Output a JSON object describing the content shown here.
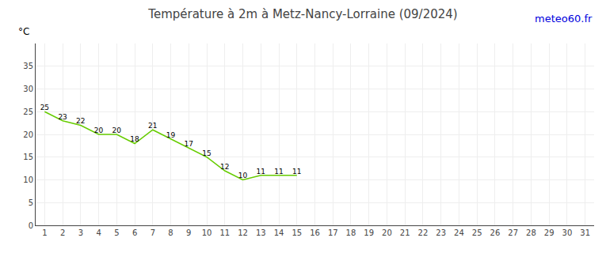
{
  "chart_data": {
    "type": "line",
    "title": "Température à 2m à Metz-Nancy-Lorraine (09/2024)",
    "ylabel": "°C",
    "annotations": [
      "meteo60.fr"
    ],
    "x": [
      1,
      2,
      3,
      4,
      5,
      6,
      7,
      8,
      9,
      10,
      11,
      12,
      13,
      14,
      15
    ],
    "values": [
      25,
      23,
      22,
      20,
      20,
      18,
      21,
      19,
      17,
      15,
      12,
      10,
      11,
      11,
      11
    ],
    "color": "#66cc00",
    "xlim": [
      0.5,
      31.5
    ],
    "xticks": [
      1,
      2,
      3,
      4,
      5,
      6,
      7,
      8,
      9,
      10,
      11,
      12,
      13,
      14,
      15,
      16,
      17,
      18,
      19,
      20,
      21,
      22,
      23,
      24,
      25,
      26,
      27,
      28,
      29,
      30,
      31
    ],
    "ylim": [
      0,
      40
    ],
    "yticks": [
      0,
      5,
      10,
      15,
      20,
      25,
      30,
      35
    ],
    "grid": true,
    "data_labels": true
  }
}
